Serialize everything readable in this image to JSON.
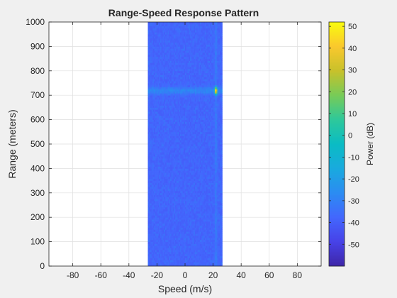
{
  "chart_data": {
    "type": "heatmap",
    "title": "Range-Speed Response Pattern",
    "xlabel": "Speed (m/s)",
    "ylabel": "Range (meters)",
    "colorbar_label": "Power (dB)",
    "xlim": [
      -97,
      97
    ],
    "ylim": [
      0,
      1000
    ],
    "xticks": [
      -80,
      -60,
      -40,
      -20,
      0,
      20,
      40,
      60,
      80
    ],
    "yticks": [
      0,
      100,
      200,
      300,
      400,
      500,
      600,
      700,
      800,
      900,
      1000
    ],
    "clim": [
      -60,
      52
    ],
    "cticks": [
      -50,
      -40,
      -30,
      -20,
      -10,
      0,
      10,
      20,
      30,
      40,
      50
    ],
    "grid": true,
    "colormap": "parula",
    "data_extent": {
      "speed": [
        -26.5,
        26.5
      ],
      "range": [
        0,
        1000
      ]
    },
    "noise_floor_db": -40,
    "target": {
      "speed": 22,
      "range": 719,
      "peak_db": 50
    },
    "colors": {
      "background": "#f0f0f0",
      "axes": "#ffffff",
      "grid": "#dfdfdf",
      "text": "#262626"
    }
  }
}
